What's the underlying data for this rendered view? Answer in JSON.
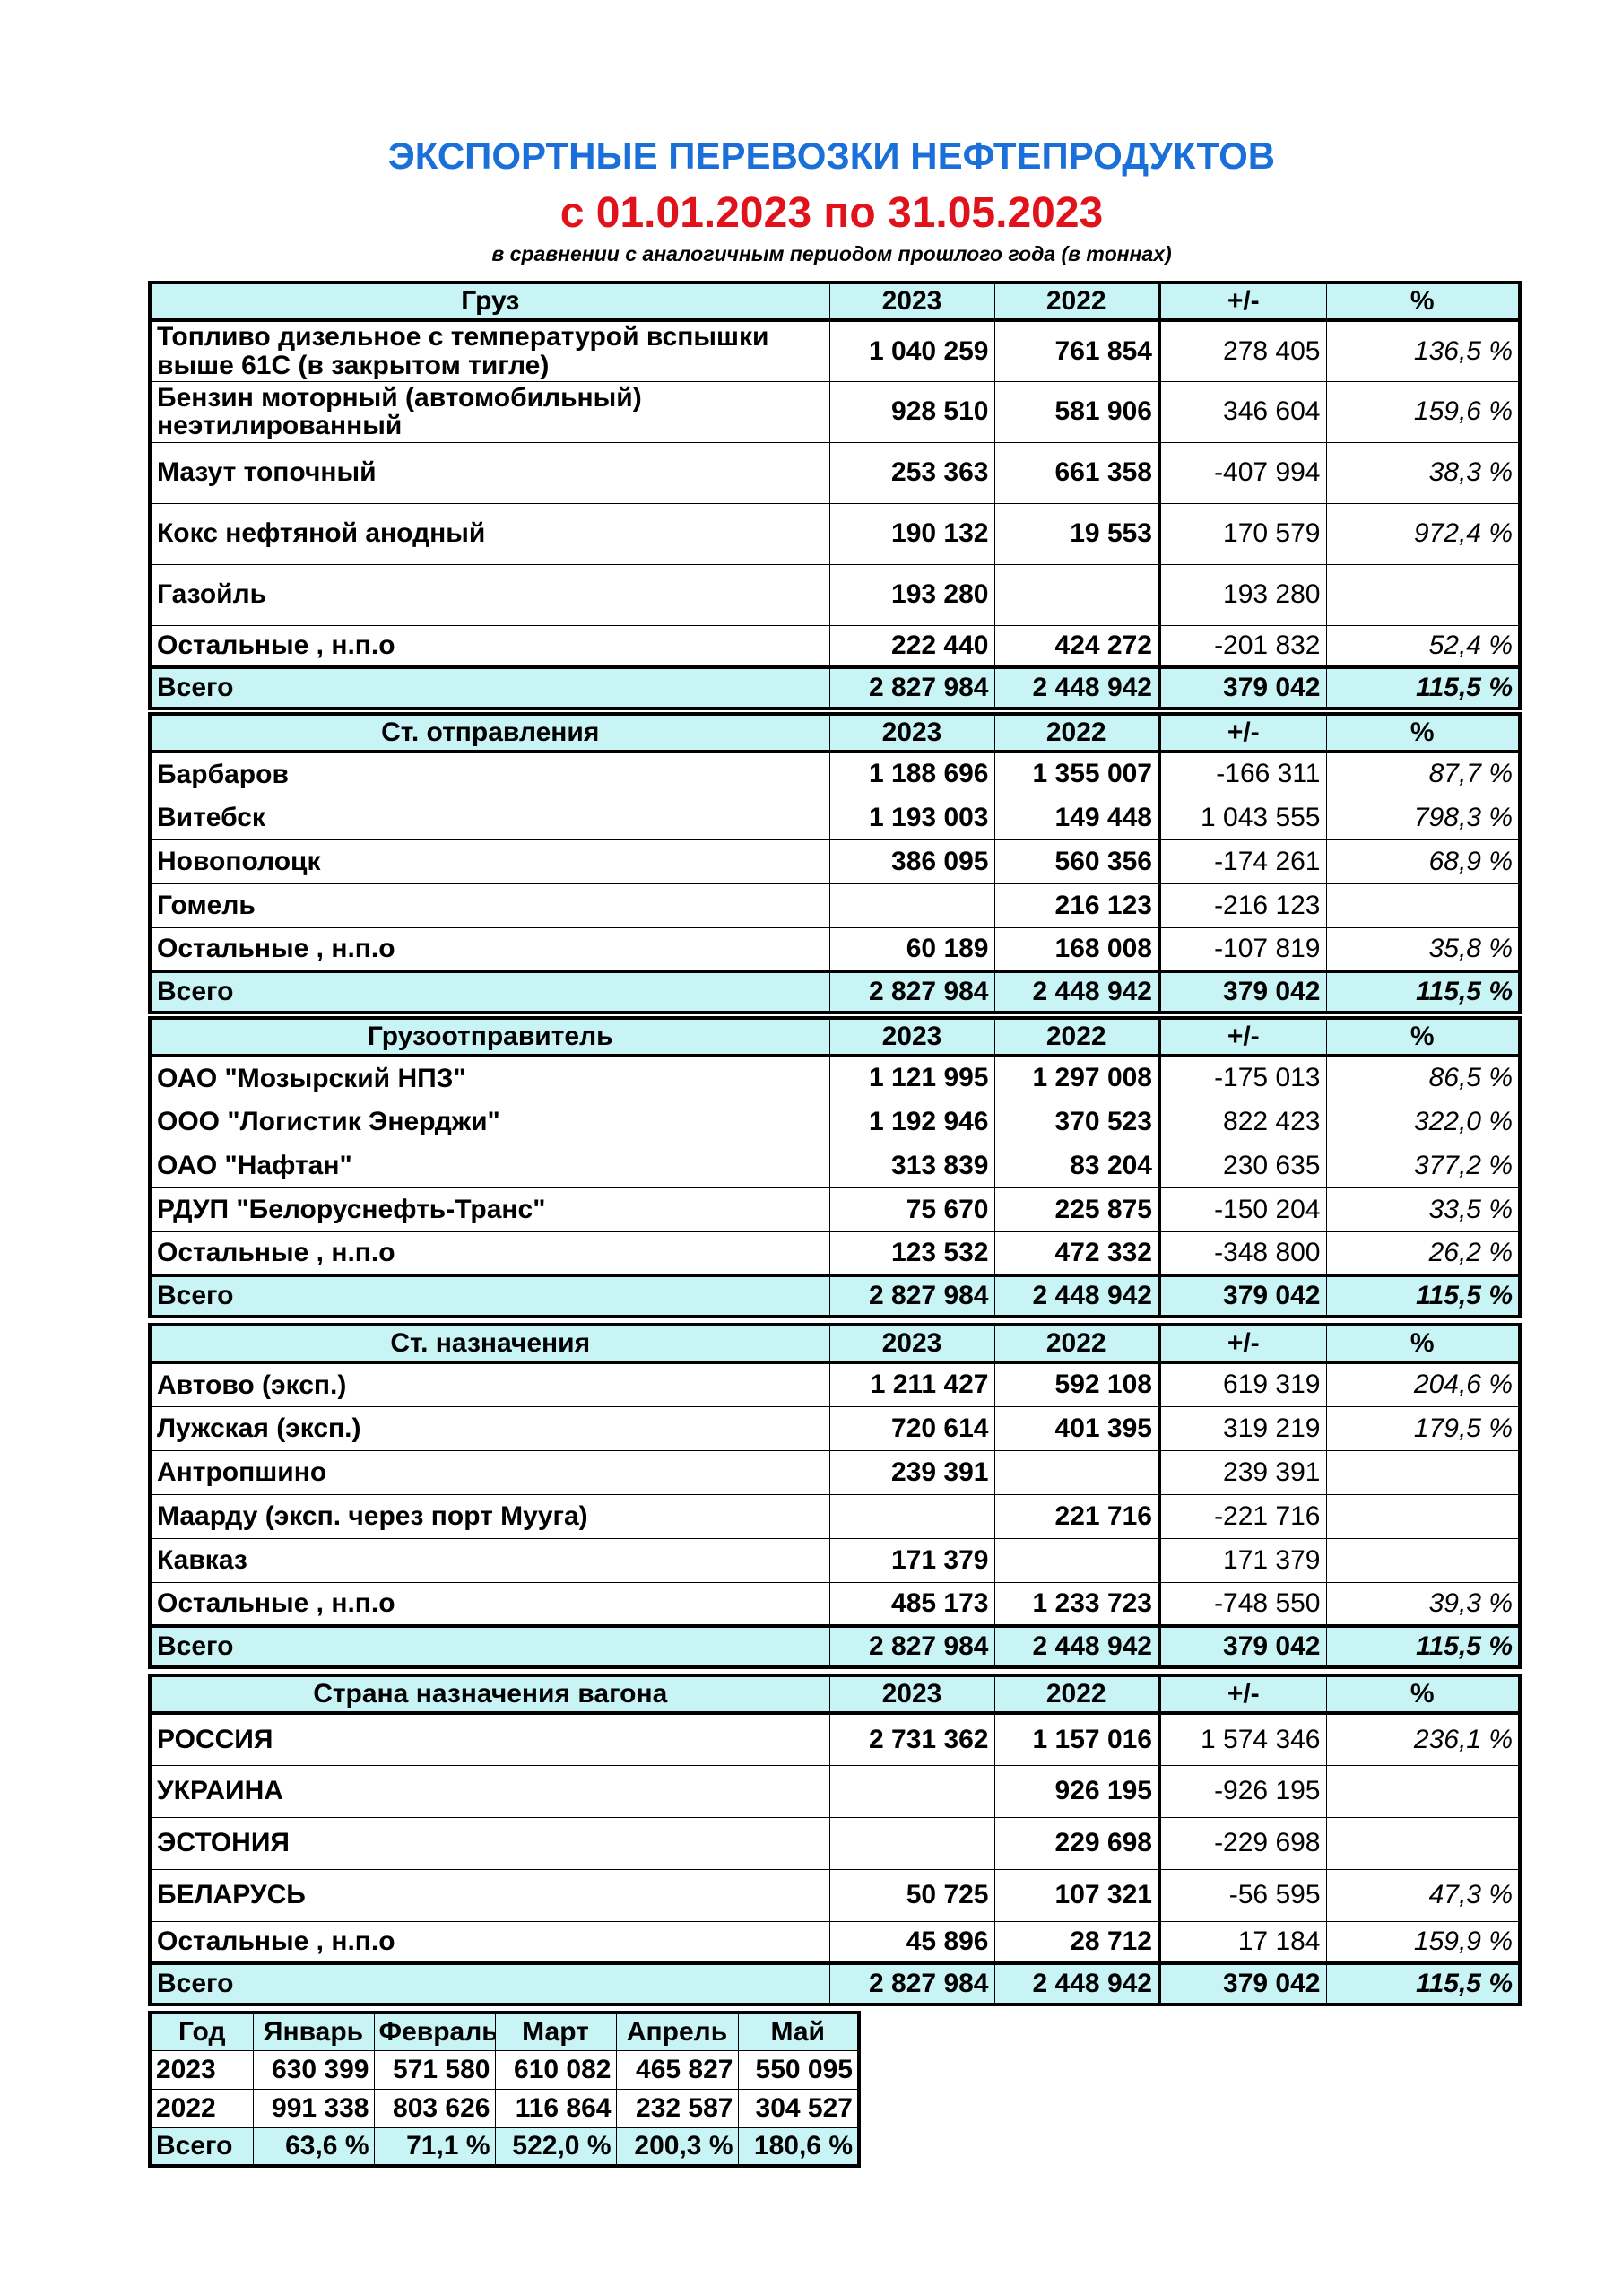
{
  "header": {
    "title": "ЭКСПОРТНЫЕ ПЕРЕВОЗКИ НЕФТЕПРОДУКТОВ",
    "period": "с 01.01.2023 по 31.05.2023",
    "note": "в сравнении с аналогичным периодом прошлого года (в тоннах)"
  },
  "sections": [
    {
      "header": [
        "Груз",
        "2023",
        "2022",
        "+/-",
        "%"
      ],
      "rows": [
        [
          "Топливо дизельное с температурой вспышки выше 61С (в закрытом тигле)",
          "1 040 259",
          "761 854",
          "278 405",
          "136,5 %"
        ],
        [
          "Бензин моторный (автомобильный) неэтилированный",
          "928 510",
          "581 906",
          "346 604",
          "159,6 %"
        ],
        [
          "Мазут топочный",
          "253 363",
          "661 358",
          "-407 994",
          "38,3 %"
        ],
        [
          "Кокс нефтяной анодный",
          "190 132",
          "19 553",
          "170 579",
          "972,4 %"
        ],
        [
          "Газойль",
          "193 280",
          null,
          "193 280",
          null
        ],
        [
          "Остальные , н.п.о",
          "222 440",
          "424 272",
          "-201 832",
          "52,4 %"
        ]
      ],
      "total": [
        "Всего",
        "2 827 984",
        "2 448 942",
        "379 042",
        "115,5 %"
      ]
    },
    {
      "header": [
        "Ст. отправления",
        "2023",
        "2022",
        "+/-",
        "%"
      ],
      "rows": [
        [
          "Барбаров",
          "1 188 696",
          "1 355 007",
          "-166 311",
          "87,7 %"
        ],
        [
          "Витебск",
          "1 193 003",
          "149 448",
          "1 043 555",
          "798,3 %"
        ],
        [
          "Новополоцк",
          "386 095",
          "560 356",
          "-174 261",
          "68,9 %"
        ],
        [
          "Гомель",
          null,
          "216 123",
          "-216 123",
          null
        ],
        [
          "Остальные , н.п.о",
          "60 189",
          "168 008",
          "-107 819",
          "35,8 %"
        ]
      ],
      "total": [
        "Всего",
        "2 827 984",
        "2 448 942",
        "379 042",
        "115,5 %"
      ]
    },
    {
      "header": [
        "Грузоотправитель",
        "2023",
        "2022",
        "+/-",
        "%"
      ],
      "rows": [
        [
          "ОАО \"Мозырский НПЗ\"",
          "1 121 995",
          "1 297 008",
          "-175 013",
          "86,5 %"
        ],
        [
          "ООО \"Логистик Энерджи\"",
          "1 192 946",
          "370 523",
          "822 423",
          "322,0 %"
        ],
        [
          "ОАО \"Нафтан\"",
          "313 839",
          "83 204",
          "230 635",
          "377,2 %"
        ],
        [
          "РДУП \"Белоруснефть-Транс\"",
          "75 670",
          "225 875",
          "-150 204",
          "33,5 %"
        ],
        [
          "Остальные , н.п.о",
          "123 532",
          "472 332",
          "-348 800",
          "26,2 %"
        ]
      ],
      "total": [
        "Всего",
        "2 827 984",
        "2 448 942",
        "379 042",
        "115,5 %"
      ]
    },
    {
      "header": [
        "Ст. назначения",
        "2023",
        "2022",
        "+/-",
        "%"
      ],
      "rows": [
        [
          "Автово (эксп.)",
          "1 211 427",
          "592 108",
          "619 319",
          "204,6 %"
        ],
        [
          "Лужская (эксп.)",
          "720 614",
          "401 395",
          "319 219",
          "179,5 %"
        ],
        [
          "Антропшино",
          "239 391",
          null,
          "239 391",
          null
        ],
        [
          "Маарду (эксп. через порт Мууга)",
          null,
          "221 716",
          "-221 716",
          null
        ],
        [
          "Кавказ",
          "171 379",
          null,
          "171 379",
          null
        ],
        [
          "Остальные , н.п.о",
          "485 173",
          "1 233 723",
          "-748 550",
          "39,3 %"
        ]
      ],
      "total": [
        "Всего",
        "2 827 984",
        "2 448 942",
        "379 042",
        "115,5 %"
      ]
    },
    {
      "header": [
        "Страна назначения вагона",
        "2023",
        "2022",
        "+/-",
        "%"
      ],
      "rows": [
        [
          "РОССИЯ",
          "2 731 362",
          "1 157 016",
          "1 574 346",
          "236,1 %"
        ],
        [
          "УКРАИНА",
          null,
          "926 195",
          "-926 195",
          null
        ],
        [
          "ЭСТОНИЯ",
          null,
          "229 698",
          "-229 698",
          null
        ],
        [
          "БЕЛАРУСЬ",
          "50 725",
          "107 321",
          "-56 595",
          "47,3 %"
        ],
        [
          "Остальные , н.п.о",
          "45 896",
          "28 712",
          "17 184",
          "159,9 %"
        ]
      ],
      "total": [
        "Всего",
        "2 827 984",
        "2 448 942",
        "379 042",
        "115,5 %"
      ]
    }
  ],
  "months": {
    "header": [
      "Год",
      "Январь",
      "Февраль",
      "Март",
      "Апрель",
      "Май"
    ],
    "rows": [
      [
        "2023",
        "630 399",
        "571 580",
        "610 082",
        "465 827",
        "550 095"
      ],
      [
        "2022",
        "991 338",
        "803 626",
        "116 864",
        "232 587",
        "304 527"
      ]
    ],
    "total": [
      "Всего",
      "63,6 %",
      "71,1 %",
      "522,0 %",
      "200,3 %",
      "180,6 %"
    ]
  }
}
